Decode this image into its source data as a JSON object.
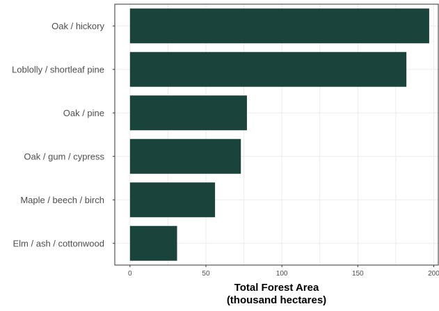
{
  "chart_data": {
    "type": "bar",
    "orientation": "horizontal",
    "categories": [
      "Oak / hickory",
      "Loblolly / shortleaf pine",
      "Oak / pine",
      "Oak / gum / cypress",
      "Maple / beech / birch",
      "Elm / ash / cottonwood"
    ],
    "values": [
      197,
      182,
      77,
      73,
      56,
      31
    ],
    "title": "",
    "xlabel_line1": "Total Forest Area",
    "xlabel_line2": "(thousand hectares)",
    "ylabel": "",
    "xlim": [
      -10,
      203
    ],
    "xticks": [
      0,
      50,
      100,
      150,
      200
    ],
    "xtick_labels": [
      "0",
      "50",
      "100",
      "150",
      "200"
    ],
    "bar_color": "#1a433b",
    "grid": true,
    "legend": "none"
  }
}
